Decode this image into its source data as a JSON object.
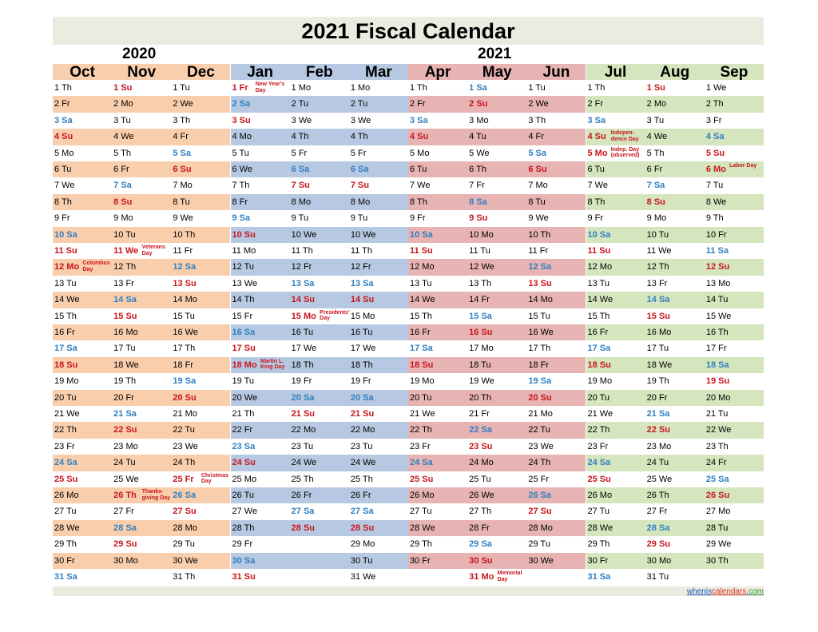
{
  "title": "2021 Fiscal Calendar",
  "year_left": "2020",
  "year_right": "2021",
  "colors": {
    "q_oct_dec": "#f9ceac",
    "q_jan_mar": "#b7c9e2",
    "q_apr_jun": "#e7b3b3",
    "q_jul_sep": "#d5e5bd",
    "title_bg": "#ecebe0",
    "saturday": "#2f7fc1",
    "sunday": "#c7161d"
  },
  "months": [
    {
      "name": "Oct",
      "color": "#f9ceac",
      "days": [
        "1 Th",
        "2 Fr",
        "3 Sa",
        "4 Su",
        "5 Mo",
        "6 Tu",
        "7 We",
        "8 Th",
        "9 Fr",
        "10 Sa",
        "11 Su",
        "12 Mo",
        "13 Tu",
        "14 We",
        "15 Th",
        "16 Fr",
        "17 Sa",
        "18 Su",
        "19 Mo",
        "20 Tu",
        "21 We",
        "22 Th",
        "23 Fr",
        "24 Sa",
        "25 Su",
        "26 Mo",
        "27 Tu",
        "28 We",
        "29 Th",
        "30 Fr",
        "31 Sa"
      ],
      "holidays": {
        "12": "Columbus Day"
      }
    },
    {
      "name": "Nov",
      "color": "#f9ceac",
      "days": [
        "1 Su",
        "2 Mo",
        "3 Tu",
        "4 We",
        "5 Th",
        "6 Fr",
        "7 Sa",
        "8 Su",
        "9 Mo",
        "10 Tu",
        "11 We",
        "12 Th",
        "13 Fr",
        "14 Sa",
        "15 Su",
        "16 Mo",
        "17 Tu",
        "18 We",
        "19 Th",
        "20 Fr",
        "21 Sa",
        "22 Su",
        "23 Mo",
        "24 Tu",
        "25 We",
        "26 Th",
        "27 Fr",
        "28 Sa",
        "29 Su",
        "30 Mo"
      ],
      "holidays": {
        "11": "Veterans Day",
        "26": "Thanks-giving Day"
      }
    },
    {
      "name": "Dec",
      "color": "#f9ceac",
      "days": [
        "1 Tu",
        "2 We",
        "3 Th",
        "4 Fr",
        "5 Sa",
        "6 Su",
        "7 Mo",
        "8 Tu",
        "9 We",
        "10 Th",
        "11 Fr",
        "12 Sa",
        "13 Su",
        "14 Mo",
        "15 Tu",
        "16 We",
        "17 Th",
        "18 Fr",
        "19 Sa",
        "20 Su",
        "21 Mo",
        "22 Tu",
        "23 We",
        "24 Th",
        "25 Fr",
        "26 Sa",
        "27 Su",
        "28 Mo",
        "29 Tu",
        "30 We",
        "31 Th"
      ],
      "holidays": {
        "25": "Christmas Day"
      }
    },
    {
      "name": "Jan",
      "color": "#b7c9e2",
      "days": [
        "1 Fr",
        "2 Sa",
        "3 Su",
        "4 Mo",
        "5 Tu",
        "6 We",
        "7 Th",
        "8 Fr",
        "9 Sa",
        "10 Su",
        "11 Mo",
        "12 Tu",
        "13 We",
        "14 Th",
        "15 Fr",
        "16 Sa",
        "17 Su",
        "18 Mo",
        "19 Tu",
        "20 We",
        "21 Th",
        "22 Fr",
        "23 Sa",
        "24 Su",
        "25 Mo",
        "26 Tu",
        "27 We",
        "28 Th",
        "29 Fr",
        "30 Sa",
        "31 Su"
      ],
      "holidays": {
        "1": "New Year's Day",
        "18": "Martin L. King Day"
      }
    },
    {
      "name": "Feb",
      "color": "#b7c9e2",
      "days": [
        "1 Mo",
        "2 Tu",
        "3 We",
        "4 Th",
        "5 Fr",
        "6 Sa",
        "7 Su",
        "8 Mo",
        "9 Tu",
        "10 We",
        "11 Th",
        "12 Fr",
        "13 Sa",
        "14 Su",
        "15 Mo",
        "16 Tu",
        "17 We",
        "18 Th",
        "19 Fr",
        "20 Sa",
        "21 Su",
        "22 Mo",
        "23 Tu",
        "24 We",
        "25 Th",
        "26 Fr",
        "27 Sa",
        "28 Su"
      ],
      "holidays": {
        "15": "Presidents' Day"
      }
    },
    {
      "name": "Mar",
      "color": "#b7c9e2",
      "days": [
        "1 Mo",
        "2 Tu",
        "3 We",
        "4 Th",
        "5 Fr",
        "6 Sa",
        "7 Su",
        "8 Mo",
        "9 Tu",
        "10 We",
        "11 Th",
        "12 Fr",
        "13 Sa",
        "14 Su",
        "15 Mo",
        "16 Tu",
        "17 We",
        "18 Th",
        "19 Fr",
        "20 Sa",
        "21 Su",
        "22 Mo",
        "23 Tu",
        "24 We",
        "25 Th",
        "26 Fr",
        "27 Sa",
        "28 Su",
        "29 Mo",
        "30 Tu",
        "31 We"
      ],
      "holidays": {}
    },
    {
      "name": "Apr",
      "color": "#e7b3b3",
      "days": [
        "1 Th",
        "2 Fr",
        "3 Sa",
        "4 Su",
        "5 Mo",
        "6 Tu",
        "7 We",
        "8 Th",
        "9 Fr",
        "10 Sa",
        "11 Su",
        "12 Mo",
        "13 Tu",
        "14 We",
        "15 Th",
        "16 Fr",
        "17 Sa",
        "18 Su",
        "19 Mo",
        "20 Tu",
        "21 We",
        "22 Th",
        "23 Fr",
        "24 Sa",
        "25 Su",
        "26 Mo",
        "27 Tu",
        "28 We",
        "29 Th",
        "30 Fr"
      ],
      "holidays": {}
    },
    {
      "name": "May",
      "color": "#e7b3b3",
      "days": [
        "1 Sa",
        "2 Su",
        "3 Mo",
        "4 Tu",
        "5 We",
        "6 Th",
        "7 Fr",
        "8 Sa",
        "9 Su",
        "10 Mo",
        "11 Tu",
        "12 We",
        "13 Th",
        "14 Fr",
        "15 Sa",
        "16 Su",
        "17 Mo",
        "18 Tu",
        "19 We",
        "20 Th",
        "21 Fr",
        "22 Sa",
        "23 Su",
        "24 Mo",
        "25 Tu",
        "26 We",
        "27 Th",
        "28 Fr",
        "29 Sa",
        "30 Su",
        "31 Mo"
      ],
      "holidays": {
        "31": "Memorial Day"
      }
    },
    {
      "name": "Jun",
      "color": "#e7b3b3",
      "days": [
        "1 Tu",
        "2 We",
        "3 Th",
        "4 Fr",
        "5 Sa",
        "6 Su",
        "7 Mo",
        "8 Tu",
        "9 We",
        "10 Th",
        "11 Fr",
        "12 Sa",
        "13 Su",
        "14 Mo",
        "15 Tu",
        "16 We",
        "17 Th",
        "18 Fr",
        "19 Sa",
        "20 Su",
        "21 Mo",
        "22 Tu",
        "23 We",
        "24 Th",
        "25 Fr",
        "26 Sa",
        "27 Su",
        "28 Mo",
        "29 Tu",
        "30 We"
      ],
      "holidays": {}
    },
    {
      "name": "Jul",
      "color": "#d5e5bd",
      "days": [
        "1 Th",
        "2 Fr",
        "3 Sa",
        "4 Su",
        "5 Mo",
        "6 Tu",
        "7 We",
        "8 Th",
        "9 Fr",
        "10 Sa",
        "11 Su",
        "12 Mo",
        "13 Tu",
        "14 We",
        "15 Th",
        "16 Fr",
        "17 Sa",
        "18 Su",
        "19 Mo",
        "20 Tu",
        "21 We",
        "22 Th",
        "23 Fr",
        "24 Sa",
        "25 Su",
        "26 Mo",
        "27 Tu",
        "28 We",
        "29 Th",
        "30 Fr",
        "31 Sa"
      ],
      "holidays": {
        "4": "Indepen-dence Day",
        "5": "Indep. Day (observed)"
      }
    },
    {
      "name": "Aug",
      "color": "#d5e5bd",
      "days": [
        "1 Su",
        "2 Mo",
        "3 Tu",
        "4 We",
        "5 Th",
        "6 Fr",
        "7 Sa",
        "8 Su",
        "9 Mo",
        "10 Tu",
        "11 We",
        "12 Th",
        "13 Fr",
        "14 Sa",
        "15 Su",
        "16 Mo",
        "17 Tu",
        "18 We",
        "19 Th",
        "20 Fr",
        "21 Sa",
        "22 Su",
        "23 Mo",
        "24 Tu",
        "25 We",
        "26 Th",
        "27 Fr",
        "28 Sa",
        "29 Su",
        "30 Mo",
        "31 Tu"
      ],
      "holidays": {}
    },
    {
      "name": "Sep",
      "color": "#d5e5bd",
      "days": [
        "1 We",
        "2 Th",
        "3 Fr",
        "4 Sa",
        "5 Su",
        "6 Mo",
        "7 Tu",
        "8 We",
        "9 Th",
        "10 Fr",
        "11 Sa",
        "12 Su",
        "13 Mo",
        "14 Tu",
        "15 We",
        "16 Th",
        "17 Fr",
        "18 Sa",
        "19 Su",
        "20 Mo",
        "21 Tu",
        "22 We",
        "23 Th",
        "24 Fr",
        "25 Sa",
        "26 Su",
        "27 Mo",
        "28 Tu",
        "29 We",
        "30 Th"
      ],
      "holidays": {
        "6": "Labor Day"
      }
    }
  ],
  "credit": {
    "part1": "whenis",
    "part2": "calendars",
    "part3": ".",
    "part4": "com"
  }
}
